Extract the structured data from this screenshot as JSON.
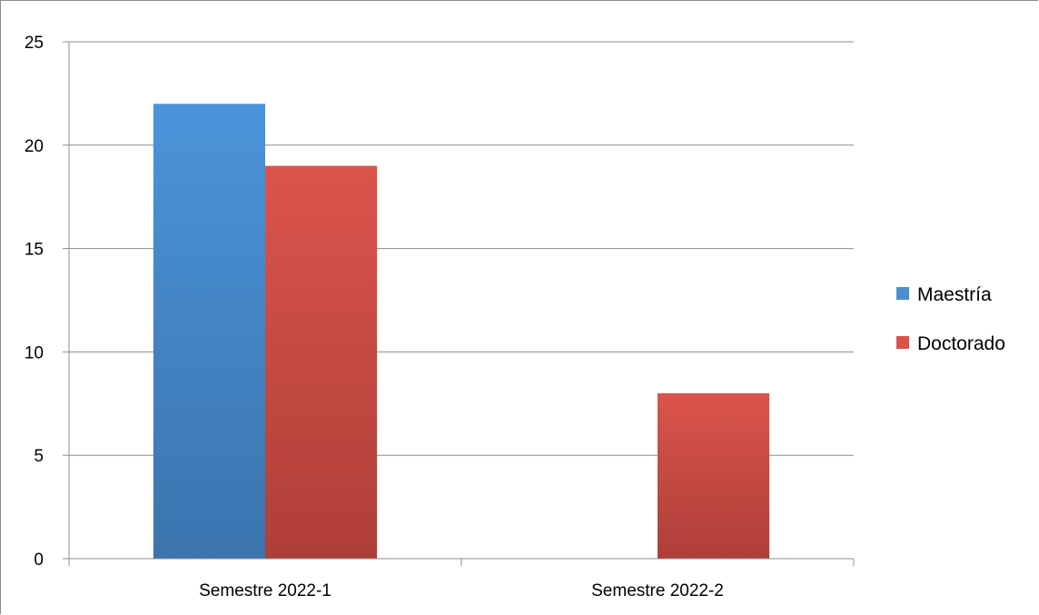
{
  "chart_data": {
    "type": "bar",
    "title": "",
    "xlabel": "",
    "ylabel": "",
    "categories": [
      "Semestre 2022-1",
      "Semestre 2022-2"
    ],
    "series": [
      {
        "name": "Maestría",
        "values": [
          22,
          0
        ]
      },
      {
        "name": "Doctorado",
        "values": [
          19,
          8
        ]
      }
    ],
    "ylim": [
      0,
      25
    ],
    "yticks": [
      "0",
      "5",
      "10",
      "15",
      "20",
      "25"
    ],
    "grid": true,
    "legend_position": "right",
    "colors": {
      "Maestría": "#4a8fd2",
      "Doctorado": "#d9534a"
    }
  }
}
